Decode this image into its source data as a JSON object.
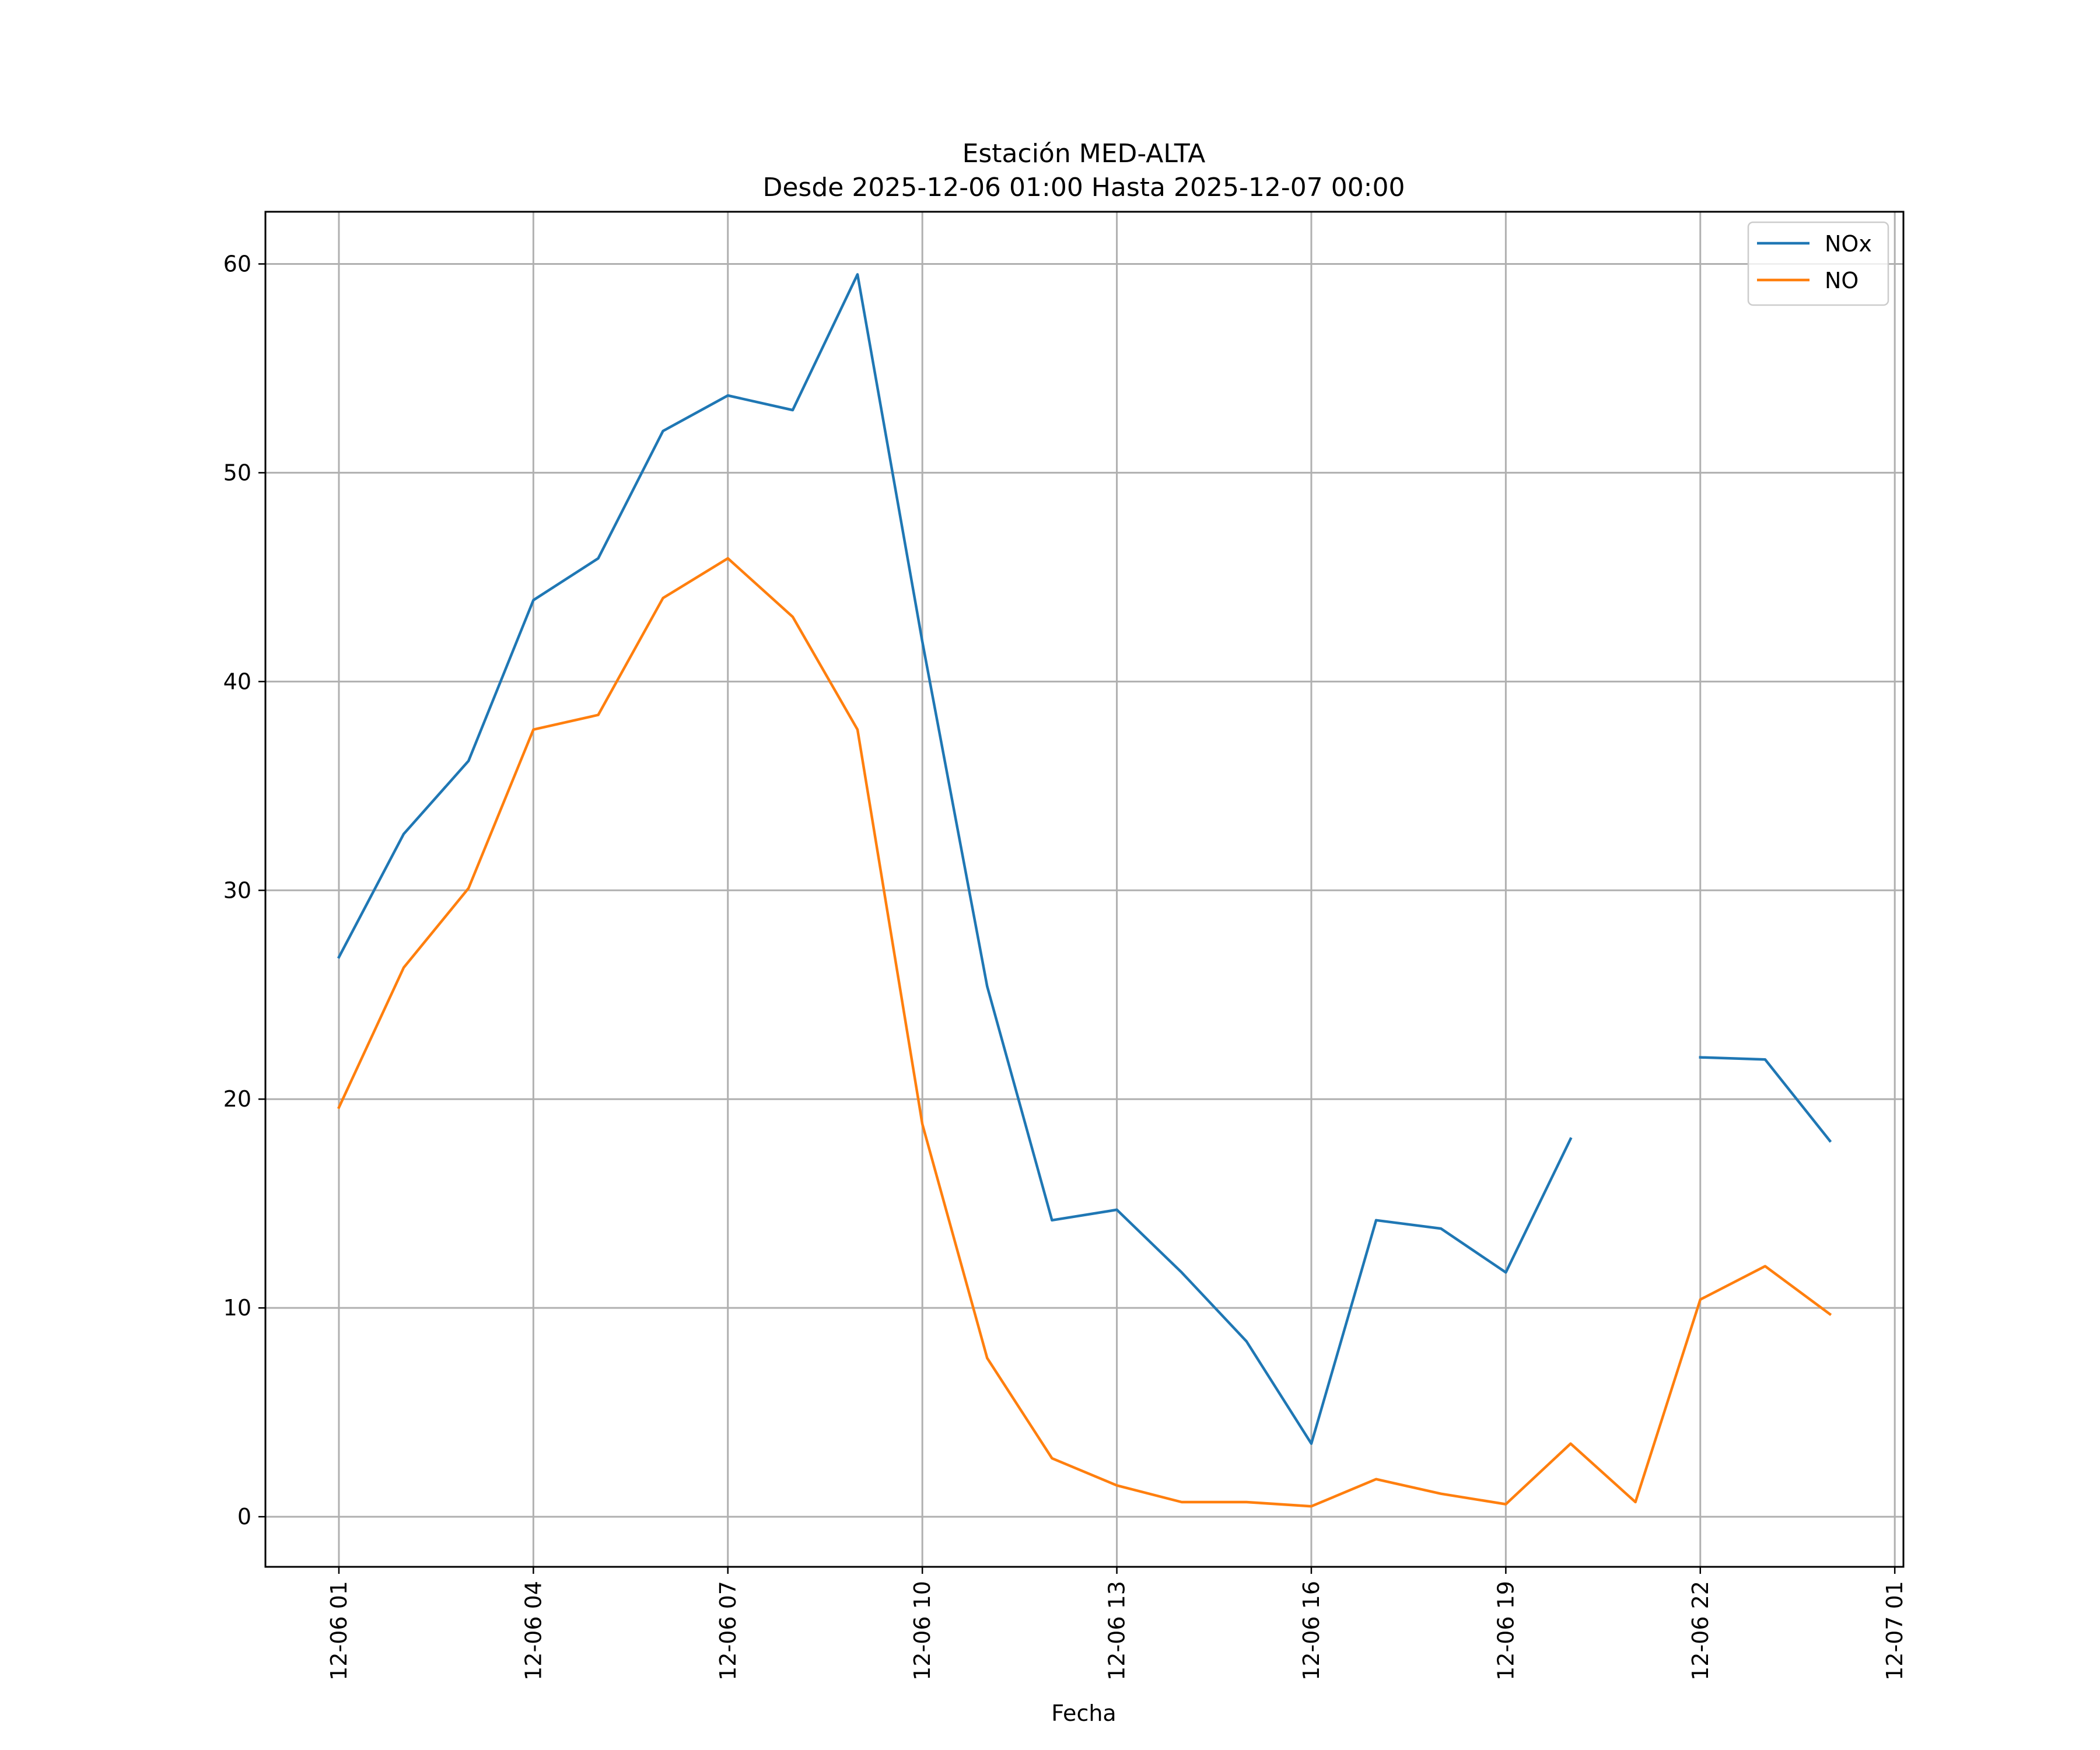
{
  "chart_data": {
    "type": "line",
    "title": "Estación MED-ALTA",
    "subtitle": "Desde 2025-12-06 01:00 Hasta 2025-12-07 00:00",
    "xlabel": "Fecha",
    "ylabel": "",
    "x": [
      "2025-12-06 01:00",
      "2025-12-06 02:00",
      "2025-12-06 03:00",
      "2025-12-06 04:00",
      "2025-12-06 05:00",
      "2025-12-06 06:00",
      "2025-12-06 07:00",
      "2025-12-06 08:00",
      "2025-12-06 09:00",
      "2025-12-06 10:00",
      "2025-12-06 11:00",
      "2025-12-06 12:00",
      "2025-12-06 13:00",
      "2025-12-06 14:00",
      "2025-12-06 15:00",
      "2025-12-06 16:00",
      "2025-12-06 17:00",
      "2025-12-06 18:00",
      "2025-12-06 19:00",
      "2025-12-06 20:00",
      "2025-12-06 21:00",
      "2025-12-06 22:00",
      "2025-12-06 23:00",
      "2025-12-07 00:00"
    ],
    "series": [
      {
        "name": "NOx",
        "color": "#1f77b4",
        "values": [
          26.8,
          32.7,
          36.2,
          43.9,
          45.9,
          52.0,
          53.7,
          53.0,
          59.5,
          41.9,
          25.4,
          14.2,
          14.7,
          11.7,
          8.4,
          3.5,
          14.2,
          13.8,
          11.7,
          18.1,
          null,
          22.0,
          21.9,
          18.0
        ]
      },
      {
        "name": "NO",
        "color": "#ff7f0e",
        "values": [
          19.6,
          26.3,
          30.1,
          37.7,
          38.4,
          44.0,
          45.9,
          43.1,
          37.7,
          18.8,
          7.6,
          2.8,
          1.5,
          0.7,
          0.7,
          0.5,
          1.8,
          1.1,
          0.6,
          3.5,
          0.7,
          10.4,
          12.0,
          9.7
        ]
      }
    ],
    "xticks": [
      "12-06 01",
      "12-06 04",
      "12-06 07",
      "12-06 10",
      "12-06 13",
      "12-06 16",
      "12-06 19",
      "12-06 22",
      "12-07 01"
    ],
    "yticks": [
      "0",
      "10",
      "20",
      "30",
      "40",
      "50",
      "60"
    ],
    "xlim": [
      "2025-12-05 23:52",
      "2025-12-07 01:08"
    ],
    "ylim": [
      -2.4,
      62.5
    ],
    "grid": true,
    "legend_position": "top-right"
  }
}
